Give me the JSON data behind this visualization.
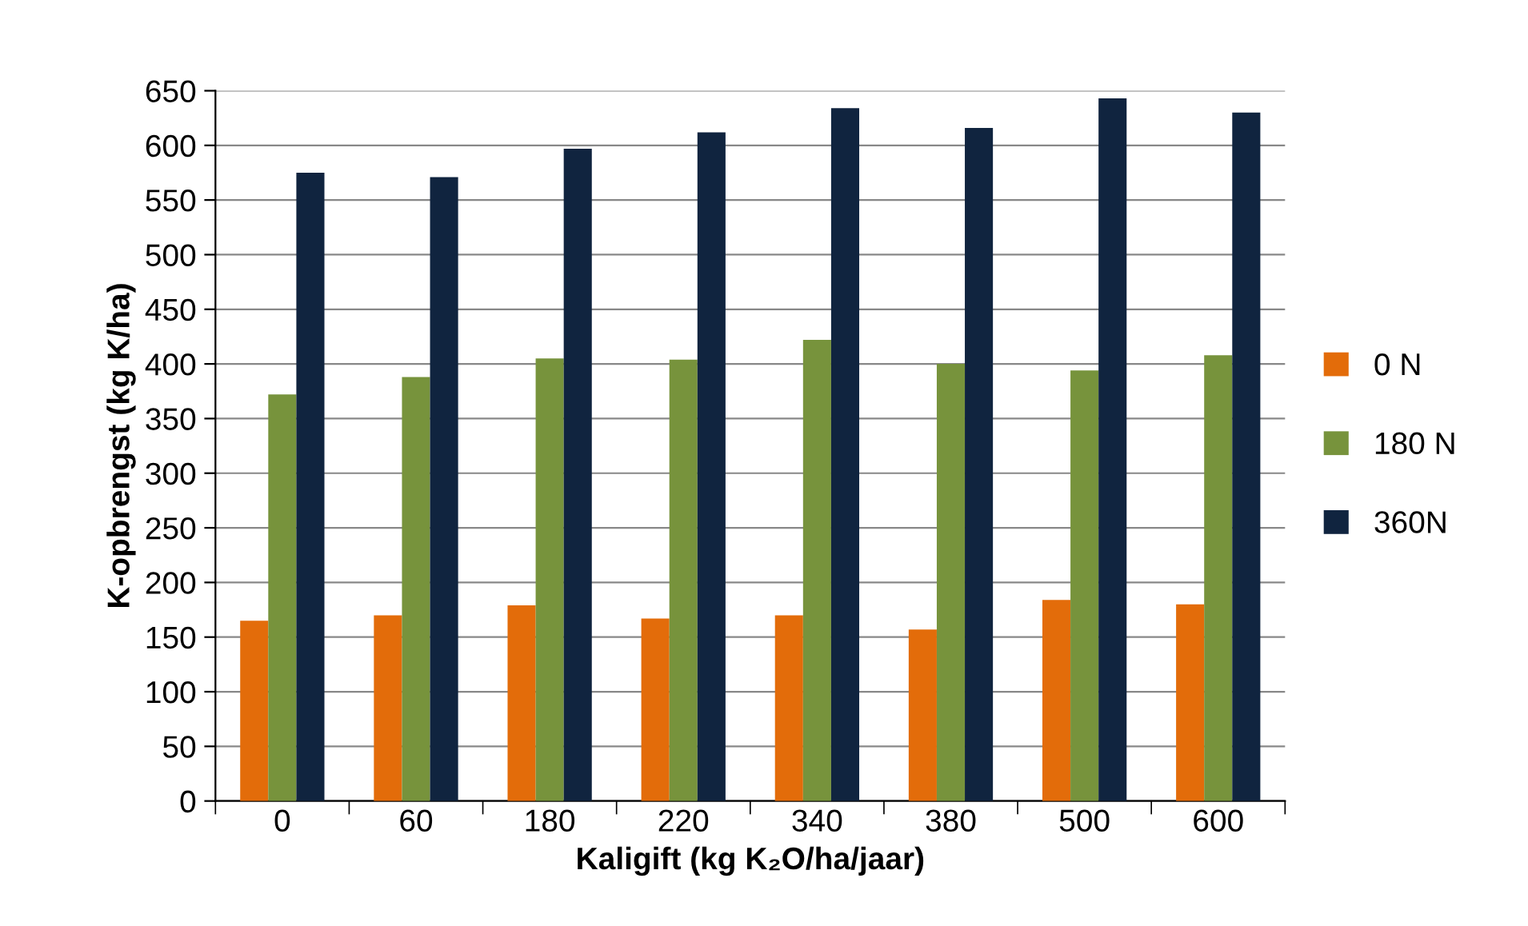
{
  "chart_data": {
    "type": "bar",
    "xlabel": "Kaligift (kg K₂O/ha/jaar)",
    "ylabel": "K-opbrengst (kg K/ha)",
    "categories": [
      "0",
      "60",
      "180",
      "220",
      "340",
      "380",
      "500",
      "600"
    ],
    "series": [
      {
        "name": "0 N",
        "color": "#e36c0a",
        "values": [
          165,
          170,
          179,
          167,
          170,
          157,
          184,
          180
        ]
      },
      {
        "name": "180 N",
        "color": "#77933c",
        "values": [
          372,
          388,
          405,
          404,
          422,
          400,
          394,
          408
        ]
      },
      {
        "name": "360N",
        "color": "#10243f",
        "values": [
          575,
          571,
          597,
          612,
          634,
          616,
          643,
          630
        ]
      }
    ],
    "ylim": [
      0,
      650
    ],
    "yticks": [
      0,
      50,
      100,
      150,
      200,
      250,
      300,
      350,
      400,
      450,
      500,
      550,
      600,
      650
    ],
    "grid": "y",
    "legend": "right"
  }
}
